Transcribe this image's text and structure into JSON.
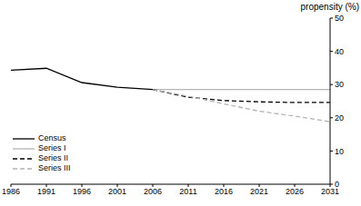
{
  "chart_data": {
    "type": "line",
    "ylabel": "propensity (%)",
    "x": [
      1986,
      1991,
      1996,
      2001,
      2006,
      2011,
      2016,
      2021,
      2026,
      2031
    ],
    "xlim": [
      1986,
      2031
    ],
    "xticks": [
      1986,
      1991,
      1996,
      2001,
      2006,
      2011,
      2016,
      2021,
      2026,
      2031
    ],
    "ylim": [
      0,
      50
    ],
    "yticks": [
      0,
      10,
      20,
      30,
      40,
      50
    ],
    "grid": false,
    "legend": "lower left",
    "series": [
      {
        "name": "Census",
        "color": "#000000",
        "line_style": "solid",
        "values": [
          34.3,
          34.9,
          30.6,
          29.2,
          28.5,
          null,
          null,
          null,
          null,
          null
        ]
      },
      {
        "name": "Series I",
        "color": "#b4b4b4",
        "line_style": "solid",
        "values": [
          null,
          null,
          null,
          null,
          28.5,
          28.5,
          28.5,
          28.5,
          28.5,
          28.5
        ]
      },
      {
        "name": "Series II",
        "color": "#000000",
        "line_style": "dashed",
        "values": [
          null,
          null,
          null,
          null,
          28.5,
          26.2,
          25.2,
          24.8,
          24.6,
          24.6
        ]
      },
      {
        "name": "Series III",
        "color": "#b4b4b4",
        "line_style": "dashed",
        "values": [
          null,
          null,
          null,
          null,
          28.5,
          26.5,
          24.2,
          22.0,
          20.5,
          18.8
        ]
      }
    ]
  }
}
